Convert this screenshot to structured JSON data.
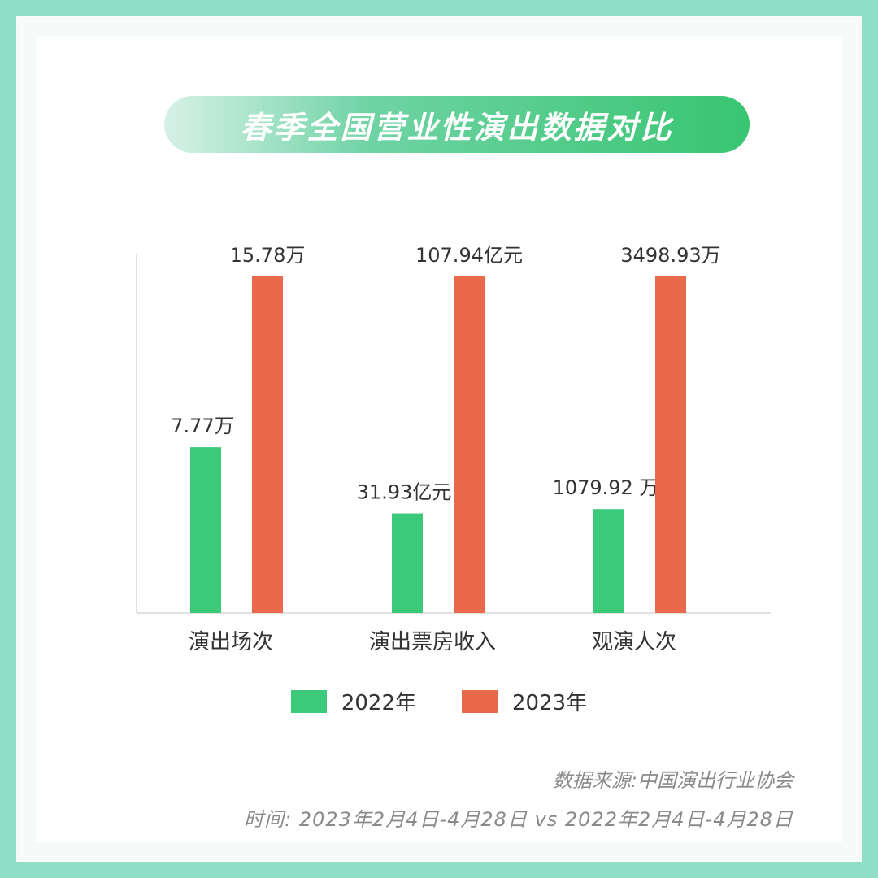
{
  "title": "春季全国营业性演出数据对比",
  "colors": {
    "y2022": "#3cc97a",
    "y2023": "#e86a4b"
  },
  "chart_data": {
    "type": "bar",
    "title": "春季全国营业性演出数据对比",
    "categories": [
      "演出场次",
      "演出票房收入",
      "观演人次"
    ],
    "series": [
      {
        "name": "2022年",
        "values": [
          7.77,
          31.93,
          1079.92
        ],
        "labels": [
          "7.77万",
          "31.93亿元",
          "1079.92 万"
        ]
      },
      {
        "name": "2023年",
        "values": [
          15.78,
          107.94,
          3498.93
        ],
        "labels": [
          "15.78万",
          "107.94亿元",
          "3498.93万"
        ]
      }
    ],
    "units": [
      "万",
      "亿元",
      "万"
    ],
    "grid": false,
    "legend": "bottom"
  },
  "footer": {
    "source": "数据来源:中国演出行业协会",
    "time": "时间:  2023年2月4日-4月28日 vs 2022年2月4日-4月28日"
  }
}
